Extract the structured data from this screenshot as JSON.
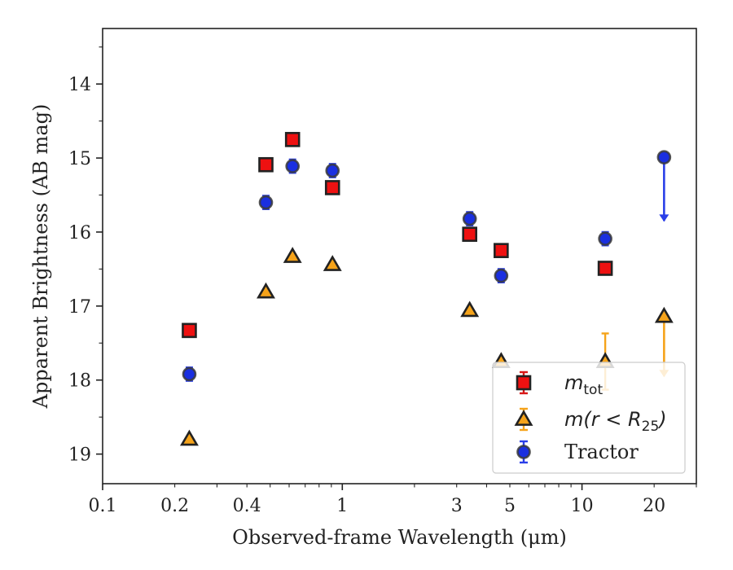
{
  "chart_data": {
    "type": "scatter",
    "xlabel": "Observed-frame Wavelength (μm)",
    "ylabel": "Apparent Brightness (AB mag)",
    "xscale": "log",
    "xlim": [
      0.1,
      30
    ],
    "ylim": [
      19.4,
      13.25
    ],
    "y_inverted": true,
    "grid": false,
    "legend_position": "bottom-right",
    "xticks": [
      {
        "value": 0.1,
        "label": "0.1"
      },
      {
        "value": 0.2,
        "label": "0.2"
      },
      {
        "value": 0.4,
        "label": "0.4"
      },
      {
        "value": 1,
        "label": "1"
      },
      {
        "value": 3,
        "label": "3"
      },
      {
        "value": 5,
        "label": "5"
      },
      {
        "value": 10,
        "label": "10"
      },
      {
        "value": 20,
        "label": "20"
      }
    ],
    "yticks": [
      {
        "value": 14,
        "label": "14"
      },
      {
        "value": 15,
        "label": "15"
      },
      {
        "value": 16,
        "label": "16"
      },
      {
        "value": 17,
        "label": "17"
      },
      {
        "value": 18,
        "label": "18"
      },
      {
        "value": 19,
        "label": "19"
      }
    ],
    "series": [
      {
        "key": "mtot",
        "legend_main": "m",
        "legend_sub": "tot",
        "marker": "square",
        "color": "#ee1111",
        "errcolor": "#d81818",
        "points": [
          {
            "x": 0.23,
            "y": 17.33,
            "err": 0.05
          },
          {
            "x": 0.48,
            "y": 15.09,
            "err": 0.04
          },
          {
            "x": 0.62,
            "y": 14.75,
            "err": 0.04
          },
          {
            "x": 0.91,
            "y": 15.4,
            "err": 0.05
          },
          {
            "x": 3.4,
            "y": 16.03,
            "err": 0.04
          },
          {
            "x": 4.6,
            "y": 16.25,
            "err": 0.05
          },
          {
            "x": 12.5,
            "y": 16.49,
            "err": 0.05
          }
        ],
        "upper_limits": []
      },
      {
        "key": "mR25",
        "legend_main": "m(r < R",
        "legend_sub": "25",
        "legend_tail": ")",
        "marker": "triangle",
        "color": "#f5a31a",
        "errcolor": "#f5a31a",
        "points": [
          {
            "x": 0.23,
            "y": 18.8,
            "err": 0
          },
          {
            "x": 0.48,
            "y": 16.81,
            "err": 0
          },
          {
            "x": 0.62,
            "y": 16.33,
            "err": 0
          },
          {
            "x": 0.91,
            "y": 16.44,
            "err": 0
          },
          {
            "x": 3.4,
            "y": 17.06,
            "err": 0
          },
          {
            "x": 4.6,
            "y": 17.75,
            "err": 0
          },
          {
            "x": 12.5,
            "y": 17.75,
            "err": 0.38
          }
        ],
        "upper_limits": [
          {
            "x": 22.0,
            "y": 17.14,
            "limit_to": 17.95
          }
        ]
      },
      {
        "key": "tractor",
        "legend_main": "Tractor",
        "marker": "circle",
        "color": "#1a2fe0",
        "errcolor": "#2a3fe8",
        "points": [
          {
            "x": 0.23,
            "y": 17.92,
            "err": 0.09
          },
          {
            "x": 0.48,
            "y": 15.6,
            "err": 0.09
          },
          {
            "x": 0.62,
            "y": 15.11,
            "err": 0.09
          },
          {
            "x": 0.91,
            "y": 15.17,
            "err": 0.09
          },
          {
            "x": 3.4,
            "y": 15.82,
            "err": 0.09
          },
          {
            "x": 4.6,
            "y": 16.59,
            "err": 0.09
          },
          {
            "x": 12.5,
            "y": 16.09,
            "err": 0.09
          }
        ],
        "upper_limits": [
          {
            "x": 22.0,
            "y": 14.99,
            "limit_to": 15.85
          }
        ]
      }
    ]
  }
}
